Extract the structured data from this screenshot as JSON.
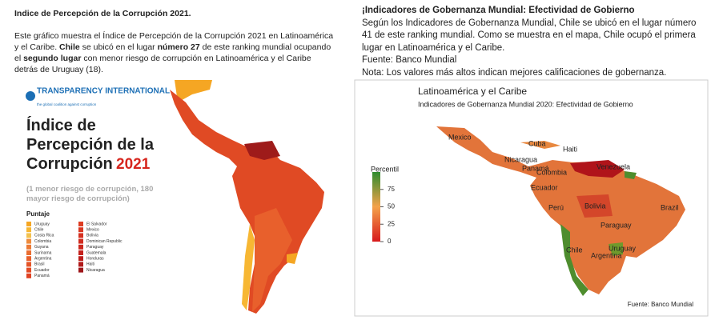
{
  "left": {
    "title": "Indice de Percepción de la Corrupción 2021.",
    "paragraph": [
      "Este gráfico muestra el Índice de Percepción de la Corrupción 2021 en Latinoamérica y el Caribe. ",
      "Chile",
      " se ubicó en el lugar ",
      "número 27",
      " de este ranking mundial ocupando el ",
      "segundo lugar",
      " con menor riesgo de corrupción en Latinoamérica y el Caribe detrás de Uruguay (18)."
    ],
    "logo": "TRANSPARENCY INTERNATIONAL",
    "tagline": "the global coalition against corruption",
    "heading": "Índice de Percepción de la Corrupción",
    "year": "2021",
    "subtitle": "(1 menor riesgo de corrupción, 180 mayor riesgo de corrupción)",
    "legend_title": "Puntaje",
    "legend_col1": [
      {
        "name": "Uruguay",
        "color": "#f5a623"
      },
      {
        "name": "Chile",
        "color": "#f7b733"
      },
      {
        "name": "Costa Rica",
        "color": "#f2c14e"
      },
      {
        "name": "Colombia",
        "color": "#ee8a3c"
      },
      {
        "name": "Guyana",
        "color": "#ec7a35"
      },
      {
        "name": "Surinama",
        "color": "#ea6d30"
      },
      {
        "name": "Argentina",
        "color": "#e8602c"
      },
      {
        "name": "Brasil",
        "color": "#e55428"
      },
      {
        "name": "Ecuador",
        "color": "#e24a25"
      },
      {
        "name": "Panamá",
        "color": "#e04323"
      }
    ],
    "legend_col2": [
      {
        "name": "El Salvador",
        "color": "#dd3c22"
      },
      {
        "name": "Mexico",
        "color": "#d93621"
      },
      {
        "name": "Bolivia",
        "color": "#d53020"
      },
      {
        "name": "Dominican Republic",
        "color": "#d02b1f"
      },
      {
        "name": "Paraguay",
        "color": "#cb271e"
      },
      {
        "name": "Guatemala",
        "color": "#c4221d"
      },
      {
        "name": "Honduras",
        "color": "#bc1e1c"
      },
      {
        "name": "Haiti",
        "color": "#b01a1b"
      },
      {
        "name": "Nicaragua",
        "color": "#9e161a"
      }
    ]
  },
  "right": {
    "title": "¡Indicadores de Gobernanza Mundial: Efectividad de Gobierno",
    "paragraph": "Según los Indicadores de Gobernanza Mundial, Chile se ubicó en el lugar número 41 de este ranking mundial. Como se muestra en el mapa, Chile ocupó el primera lugar en Latinoamérica y el Caribe.",
    "source": "Fuente: Banco Mundial",
    "note": "Nota: Los valores más altos indican mejores calificaciones de gobernanza.",
    "map_title": "Latinoamérica y el Caribe",
    "map_subtitle": "Indicadores de Gobernanza Mundial 2020: Efectividad de Gobierno",
    "colorbar": {
      "label": "Percentil",
      "lim": [
        0,
        100
      ],
      "ticks": [
        0,
        25,
        50,
        75
      ]
    },
    "countries": [
      "Mexico",
      "Cuba",
      "Haiti",
      "Nicaragua",
      "Panamá",
      "Colombia",
      "Venezuela",
      "Ecuador",
      "Perú",
      "Bolivia",
      "Brazil",
      "Paraguay",
      "Chile",
      "Argentina",
      "Uruguay"
    ],
    "map_source": "Fuente: Banco Mundial"
  }
}
